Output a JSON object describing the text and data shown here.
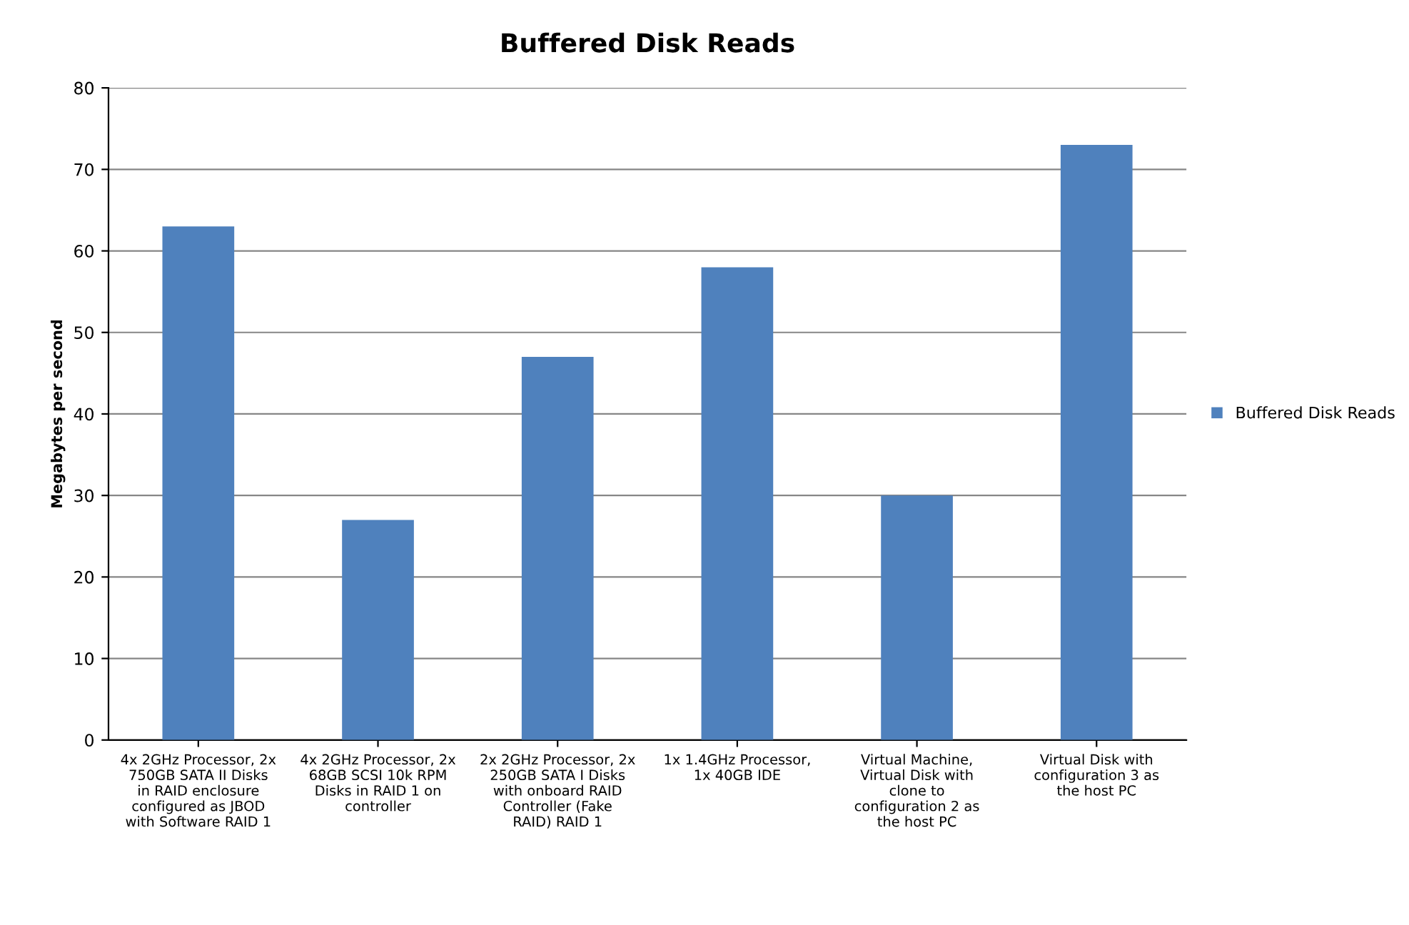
{
  "chart_data": {
    "type": "bar",
    "title": "Buffered Disk Reads",
    "ylabel": "Megabytes per second",
    "categories": [
      "4x 2GHz Processor, 2x 750GB SATA II Disks in RAID enclosure configured as JBOD with Software RAID 1",
      "4x 2GHz Processor, 2x 68GB SCSI 10k RPM Disks in RAID 1 on controller",
      "2x 2GHz Processor, 2x 250GB SATA I Disks with onboard RAID Controller (Fake RAID) RAID 1",
      "1x 1.4GHz Processor, 1x 40GB IDE",
      "Virtual Machine, Virtual Disk with clone to configuration 2 as the host PC",
      "Virtual Disk with configuration 3 as the host PC"
    ],
    "series": [
      {
        "name": "Buffered Disk Reads",
        "color": "#4f81bd",
        "values": [
          63,
          27,
          47,
          58,
          30,
          73
        ]
      }
    ],
    "ylim": [
      0,
      80
    ],
    "yticks": [
      0,
      10,
      20,
      30,
      40,
      50,
      60,
      70,
      80
    ],
    "grid": "y",
    "legend": "right"
  }
}
